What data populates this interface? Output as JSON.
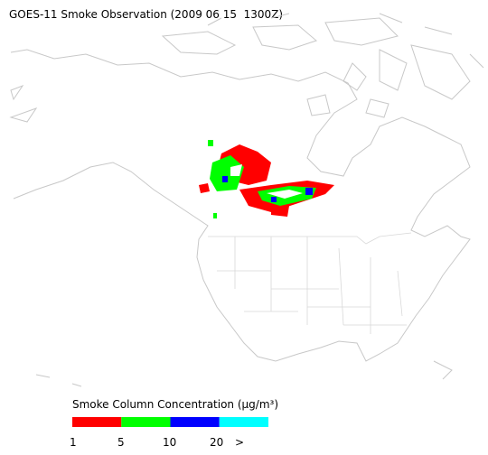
{
  "header": {
    "title": "GOES-11 Smoke Observation (2009 06 15  1300Z)"
  },
  "legend": {
    "title": "Smoke Column Concentration (μg/m³)",
    "colors": [
      "#ff0000",
      "#00ff00",
      "#0000ff",
      "#00ffff"
    ],
    "labels": [
      "1",
      "5",
      "10",
      "20",
      ">"
    ]
  }
}
